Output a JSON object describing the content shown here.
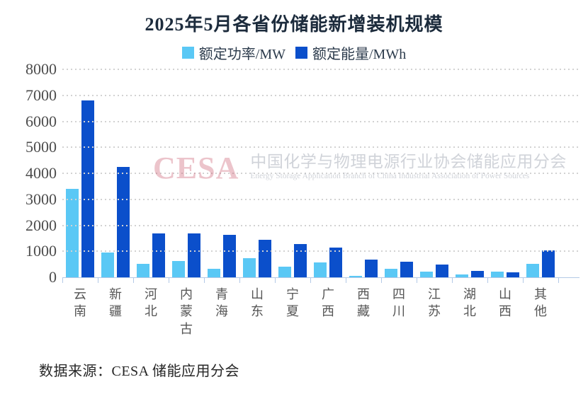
{
  "title": "2025年5月各省份储能新增装机规模",
  "source": "数据来源：CESA 储能应用分会",
  "watermark": {
    "logo": "CESA",
    "cn": "中国化学与物理电源行业协会储能应用分会",
    "en": "Energy Storage Application Branch of China Industrial Association of Power Sources"
  },
  "colors": {
    "power": "#5ac8f5",
    "energy": "#0b4fcb",
    "axis": "#b3c9e6",
    "grid": "#d2d2d2"
  },
  "chart_data": {
    "type": "bar",
    "title": "2025年5月各省份储能新增装机规模",
    "categories": [
      "云南",
      "新疆",
      "河北",
      "内蒙古",
      "青海",
      "山东",
      "宁夏",
      "广西",
      "西藏",
      "四川",
      "江苏",
      "湖北",
      "山西",
      "其他"
    ],
    "series": [
      {
        "name": "额定功率/MW",
        "color": "#5ac8f5",
        "values": [
          3400,
          950,
          520,
          620,
          320,
          730,
          400,
          570,
          60,
          320,
          230,
          110,
          230,
          520
        ]
      },
      {
        "name": "额定能量/MWh",
        "color": "#0b4fcb",
        "values": [
          6800,
          4250,
          1700,
          1680,
          1640,
          1450,
          1270,
          1130,
          670,
          590,
          500,
          240,
          190,
          1030
        ]
      }
    ],
    "xlabel": "",
    "ylabel": "",
    "ylim": [
      0,
      8000
    ],
    "yticks": [
      0,
      1000,
      2000,
      3000,
      4000,
      5000,
      6000,
      7000,
      8000
    ],
    "grid": "horizontal-dotted",
    "legend_position": "top-center"
  }
}
